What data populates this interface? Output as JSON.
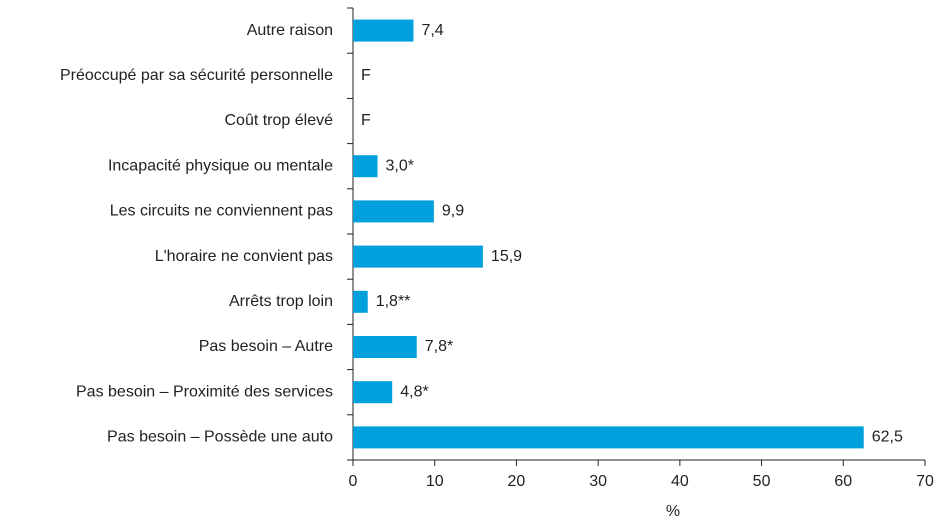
{
  "chart_data": {
    "type": "bar",
    "orientation": "horizontal",
    "categories": [
      "Autre raison",
      "Préoccupé par sa sécurité personnelle",
      "Coût trop élevé",
      "Incapacité physique ou mentale",
      "Les circuits ne conviennent pas",
      "L'horaire ne convient pas",
      "Arrêts trop loin",
      "Pas besoin – Autre",
      "Pas besoin – Proximité des services",
      "Pas besoin – Possède une auto"
    ],
    "values": [
      7.4,
      null,
      null,
      3.0,
      9.9,
      15.9,
      1.8,
      7.8,
      4.8,
      62.5
    ],
    "value_labels": [
      "7,4",
      "F",
      "F",
      "3,0*",
      "9,9",
      "15,9",
      "1,8**",
      "7,8*",
      "4,8*",
      "62,5"
    ],
    "color": "#00a0dc",
    "x_label": "%",
    "xlim": [
      0,
      70
    ],
    "xticks": [
      0,
      10,
      20,
      30,
      40,
      50,
      60,
      70
    ]
  }
}
